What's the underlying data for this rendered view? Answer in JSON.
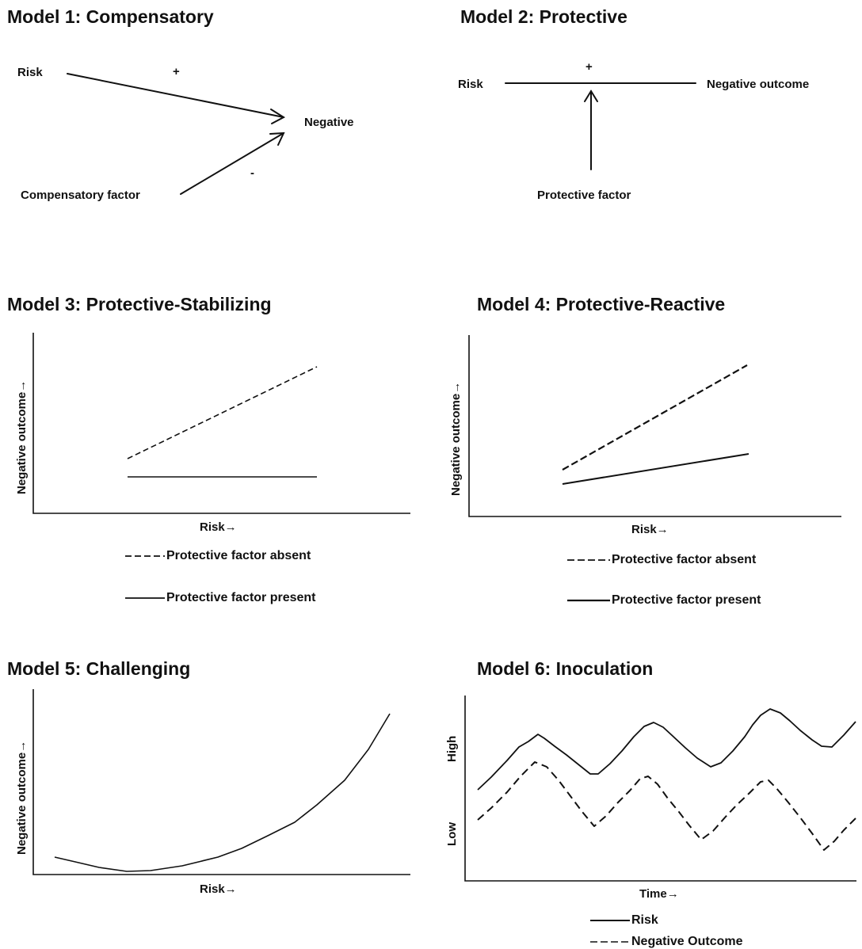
{
  "models": [
    {
      "title": "Model 1: Compensatory",
      "labels": {
        "risk": "Risk",
        "compensatory": "Compensatory factor",
        "outcome": "Negative"
      },
      "signs": {
        "risk_sign": "+",
        "comp_sign": "-"
      }
    },
    {
      "title": "Model 2: Protective",
      "labels": {
        "risk": "Risk",
        "outcome": "Negative outcome",
        "protective": "Protective factor"
      },
      "signs": {
        "plus": "+"
      }
    },
    {
      "title": "Model 3: Protective-Stabilizing",
      "ylabel": "Negative outcome→",
      "xlabel": "Risk→",
      "legend": {
        "absent": "Protective factor absent",
        "present": "Protective factor present"
      }
    },
    {
      "title": "Model 4: Protective-Reactive",
      "ylabel": "Negative outcome→",
      "xlabel": "Risk→",
      "legend": {
        "absent": "Protective factor absent",
        "present": "Protective factor present"
      }
    },
    {
      "title": "Model 5: Challenging",
      "ylabel": "Negative outcome→",
      "xlabel": "Risk→"
    },
    {
      "title": "Model 6: Inoculation",
      "yhigh": "High",
      "ylow": "Low",
      "xlabel": "Time→",
      "legend": {
        "risk": "Risk",
        "negative": "Negative Outcome"
      }
    }
  ]
}
